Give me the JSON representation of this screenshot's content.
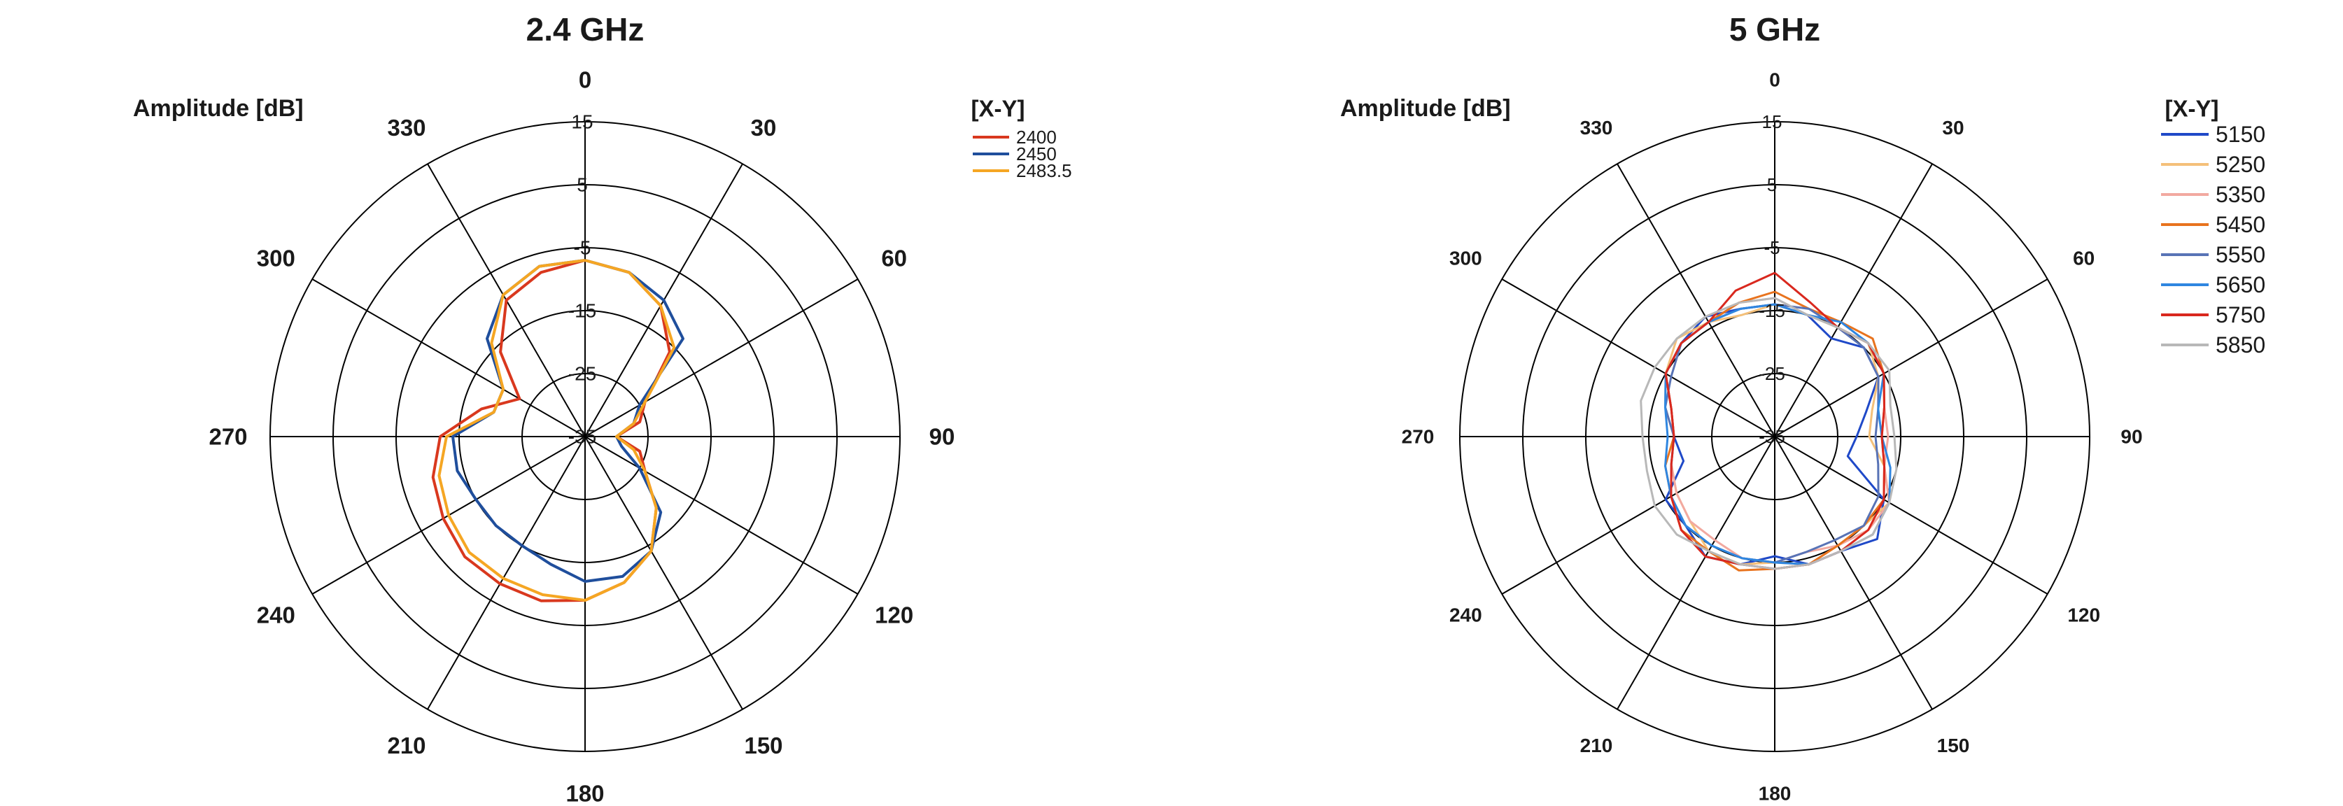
{
  "chart_data": [
    {
      "type": "polar-line",
      "title": "2.4 GHz",
      "radial_label": "Amplitude [dB]",
      "legend_title": "[X-Y]",
      "rlim": [
        -35,
        15
      ],
      "r_ticks": [
        15,
        5,
        -5,
        -15,
        -25,
        -35
      ],
      "angle_ticks": [
        0,
        30,
        60,
        90,
        120,
        150,
        180,
        210,
        240,
        270,
        300,
        330
      ],
      "angles": [
        0,
        15,
        30,
        45,
        60,
        75,
        90,
        105,
        120,
        135,
        150,
        165,
        180,
        195,
        210,
        225,
        240,
        255,
        270,
        285,
        300,
        315,
        330,
        345
      ],
      "series": [
        {
          "name": "2400",
          "color": "#d9381e",
          "values": [
            -7,
            -8,
            -11,
            -16,
            -24,
            -26,
            -30,
            -26,
            -24,
            -19,
            -14,
            -11,
            -9,
            -8,
            -8,
            -8,
            -9,
            -10,
            -12,
            -18,
            -23,
            -16,
            -10,
            -8
          ]
        },
        {
          "name": "2450",
          "color": "#1f4e9c",
          "values": [
            -7,
            -8,
            -10,
            -13,
            -25,
            -27,
            -30,
            -29,
            -25,
            -18,
            -14,
            -12,
            -12,
            -14,
            -15,
            -15,
            -15,
            -14,
            -14,
            -20,
            -20,
            -13,
            -9,
            -7
          ]
        },
        {
          "name": "2483.5",
          "color": "#f5a623",
          "values": [
            -7,
            -8,
            -11,
            -15,
            -24,
            -27,
            -30,
            -27,
            -24,
            -19,
            -14,
            -11,
            -9,
            -9,
            -9,
            -9,
            -10,
            -11,
            -13,
            -20,
            -20,
            -14,
            -9,
            -7
          ]
        }
      ]
    },
    {
      "type": "polar-line",
      "title": "5 GHz",
      "radial_label": "Amplitude [dB]",
      "legend_title": "[X-Y]",
      "rlim": [
        -35,
        15
      ],
      "r_ticks": [
        15,
        5,
        -5,
        -15,
        -25,
        -35
      ],
      "angle_ticks": [
        0,
        30,
        60,
        90,
        120,
        150,
        180,
        210,
        240,
        270,
        300,
        330
      ],
      "angles": [
        0,
        15,
        30,
        45,
        60,
        75,
        90,
        105,
        120,
        135,
        150,
        165,
        180,
        195,
        210,
        225,
        240,
        255,
        270,
        285,
        300,
        315,
        330,
        345
      ],
      "series": [
        {
          "name": "5150",
          "color": "#1f49c8",
          "values": [
            -14,
            -15,
            -17,
            -15,
            -16,
            -20,
            -22,
            -23,
            -15,
            -12,
            -14,
            -14,
            -16,
            -14,
            -13,
            -15,
            -15,
            -20,
            -19,
            -18,
            -15,
            -14,
            -13,
            -14
          ]
        },
        {
          "name": "5250",
          "color": "#f4c07a",
          "values": [
            -14,
            -15,
            -15,
            -14,
            -16,
            -19,
            -20,
            -17,
            -14,
            -15,
            -15,
            -14,
            -15,
            -14,
            -14,
            -16,
            -17,
            -18,
            -19,
            -17,
            -15,
            -13,
            -14,
            -15
          ]
        },
        {
          "name": "5350",
          "color": "#f2a9a0",
          "values": [
            -13,
            -15,
            -15,
            -14,
            -15,
            -17,
            -17,
            -17,
            -14,
            -14,
            -15,
            -16,
            -15,
            -15,
            -16,
            -16,
            -17,
            -18,
            -19,
            -18,
            -15,
            -14,
            -14,
            -13
          ]
        },
        {
          "name": "5450",
          "color": "#e8731e",
          "values": [
            -12,
            -14,
            -14,
            -13,
            -15,
            -17,
            -18,
            -17,
            -15,
            -15,
            -15,
            -14,
            -14,
            -13,
            -14,
            -14,
            -16,
            -17,
            -19,
            -18,
            -15,
            -14,
            -14,
            -13
          ]
        },
        {
          "name": "5550",
          "color": "#5873b6",
          "values": [
            -14,
            -14,
            -15,
            -15,
            -16,
            -18,
            -19,
            -18,
            -16,
            -15,
            -16,
            -16,
            -15,
            -15,
            -15,
            -15,
            -16,
            -18,
            -19,
            -17,
            -16,
            -14,
            -14,
            -14
          ]
        },
        {
          "name": "5650",
          "color": "#2f86e0",
          "values": [
            -14,
            -15,
            -14,
            -14,
            -15,
            -18,
            -18,
            -16,
            -14,
            -13,
            -14,
            -14,
            -15,
            -15,
            -15,
            -15,
            -16,
            -17,
            -18,
            -17,
            -15,
            -14,
            -14,
            -14
          ]
        },
        {
          "name": "5750",
          "color": "#d9281e",
          "values": [
            -9,
            -13,
            -15,
            -14,
            -15,
            -17,
            -18,
            -17,
            -15,
            -14,
            -14,
            -14,
            -14,
            -14,
            -13,
            -14,
            -16,
            -18,
            -19,
            -18,
            -15,
            -14,
            -14,
            -11
          ]
        },
        {
          "name": "5850",
          "color": "#b8b8b8",
          "values": [
            -13,
            -15,
            -15,
            -14,
            -14,
            -16,
            -16,
            -15,
            -14,
            -13,
            -14,
            -14,
            -14,
            -14,
            -14,
            -13,
            -13,
            -14,
            -14,
            -13,
            -13,
            -13,
            -13,
            -13
          ]
        }
      ]
    }
  ]
}
